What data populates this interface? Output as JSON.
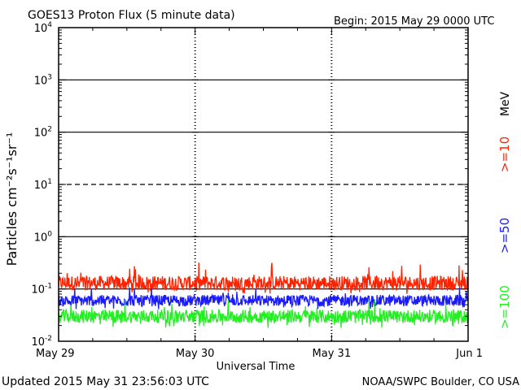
{
  "title": "GOES13 Proton Flux (5 minute data)",
  "begin_label": "Begin: 2015 May 29 0000 UTC",
  "updated_label": "Updated 2015 May 31 23:56:03 UTC",
  "credit_label": "NOAA/SWPC Boulder, CO USA",
  "colors": {
    "ge10": "#ff2200",
    "ge50": "#1a1aff",
    "ge100": "#22ee22",
    "axis": "#000000"
  },
  "chart_data": {
    "type": "line",
    "title": "GOES13 Proton Flux (5 minute data)",
    "xlabel": "Universal Time",
    "ylabel": "Particles cm⁻²s⁻¹sr⁻¹",
    "yscale": "log",
    "ylim": [
      0.01,
      10000
    ],
    "y_ticks": [
      {
        "value": 0.01,
        "base": "10",
        "exp": "-2"
      },
      {
        "value": 0.1,
        "base": "10",
        "exp": "-1"
      },
      {
        "value": 1,
        "base": "10",
        "exp": "0"
      },
      {
        "value": 10,
        "base": "10",
        "exp": "1"
      },
      {
        "value": 100,
        "base": "10",
        "exp": "2"
      },
      {
        "value": 1000,
        "base": "10",
        "exp": "3"
      },
      {
        "value": 10000,
        "base": "10",
        "exp": "4"
      }
    ],
    "x_ticks": [
      "May 29",
      "May 30",
      "May 31",
      "Jun 1"
    ],
    "xlim": [
      "2015-05-29 00:00",
      "2015-06-01 00:00"
    ],
    "reference_lines": [
      {
        "value": 1000,
        "style": "solid"
      },
      {
        "value": 100,
        "style": "solid"
      },
      {
        "value": 10,
        "style": "dashed"
      },
      {
        "value": 1,
        "style": "solid"
      },
      {
        "value": 0.1,
        "style": "solid"
      }
    ],
    "legend": {
      "unit": "MeV",
      "items": [
        {
          "label": ">=10",
          "color": "#ff2200"
        },
        {
          "label": ">=50",
          "color": "#1a1aff"
        },
        {
          "label": ">=100",
          "color": "#22ee22"
        }
      ],
      "placement": "right, rotated vertical"
    },
    "series": [
      {
        "name": ">=10",
        "color": "#ff2200",
        "baseline": 0.13,
        "min": 0.08,
        "max": 0.33
      },
      {
        "name": ">=50",
        "color": "#1a1aff",
        "baseline": 0.06,
        "min": 0.04,
        "max": 0.12
      },
      {
        "name": ">=100",
        "color": "#22ee22",
        "baseline": 0.03,
        "min": 0.018,
        "max": 0.065
      }
    ]
  }
}
